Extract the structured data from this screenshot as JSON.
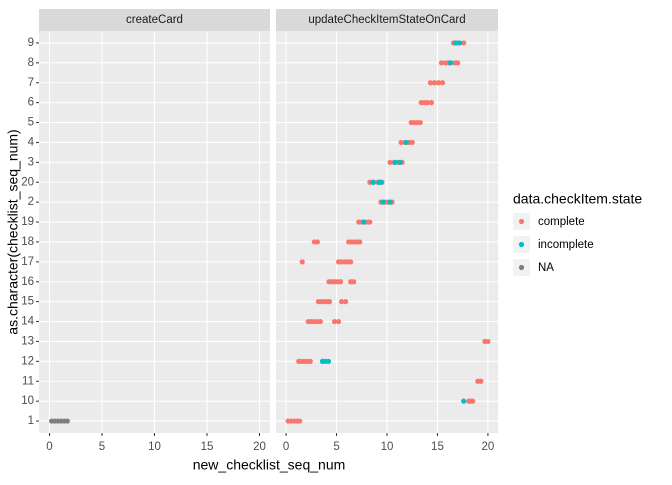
{
  "chart_data": {
    "type": "scatter",
    "panels": [
      "createCard",
      "updateCheckItemStateOnCard"
    ],
    "x_label": "new_checklist_seq_num",
    "y_label": "as.character(checklist_seq_num)",
    "legend_title": "data.checkItem.state",
    "xlim": [
      -1,
      21
    ],
    "xticks": [
      0,
      5,
      10,
      15,
      20
    ],
    "y_categories": [
      "1",
      "10",
      "11",
      "12",
      "13",
      "14",
      "15",
      "16",
      "17",
      "18",
      "19",
      "2",
      "20",
      "3",
      "4",
      "5",
      "6",
      "7",
      "8",
      "9"
    ],
    "grid": true,
    "series": [
      {
        "name": "complete",
        "color": "#F8766D",
        "panel": 1,
        "x": [
          0.2,
          0.5,
          0.8,
          1.1,
          1.35,
          18.1,
          18.3,
          18.5,
          19,
          19.3,
          1.25,
          1.5,
          1.8,
          2.1,
          2.4,
          19.7,
          20,
          2.2,
          2.5,
          2.8,
          3.1,
          3.4,
          4.8,
          5.2,
          3.2,
          3.5,
          3.8,
          4.1,
          4.3,
          5.5,
          5.9,
          4.25,
          4.5,
          4.8,
          5.1,
          5.4,
          6.4,
          6.7,
          5.2,
          5.5,
          5.8,
          6.1,
          6.4,
          1.6,
          6.2,
          6.5,
          6.8,
          7.1,
          7.3,
          2.8,
          3.1,
          7.2,
          7.5,
          7.8,
          8.1,
          8.3,
          9.4,
          9.8,
          10.1,
          10.5,
          8.3,
          8.7,
          9.1,
          9.5,
          10.3,
          10.7,
          11.1,
          11.5,
          11.4,
          11.8,
          12.2,
          12.5,
          12.4,
          12.7,
          13,
          13.3,
          13.4,
          13.7,
          14,
          14.4,
          14.3,
          14.7,
          15.1,
          15.5,
          15.4,
          15.8,
          16.1,
          16.7,
          17,
          16.6,
          17,
          17.6
        ],
        "y": [
          "1",
          "1",
          "1",
          "1",
          "1",
          "10",
          "10",
          "10",
          "11",
          "11",
          "12",
          "12",
          "12",
          "12",
          "12",
          "13",
          "13",
          "14",
          "14",
          "14",
          "14",
          "14",
          "14",
          "14",
          "15",
          "15",
          "15",
          "15",
          "15",
          "15",
          "15",
          "16",
          "16",
          "16",
          "16",
          "16",
          "16",
          "16",
          "17",
          "17",
          "17",
          "17",
          "17",
          "17",
          "18",
          "18",
          "18",
          "18",
          "18",
          "18",
          "18",
          "19",
          "19",
          "19",
          "19",
          "19",
          "2",
          "2",
          "2",
          "2",
          "20",
          "20",
          "20",
          "20",
          "3",
          "3",
          "3",
          "3",
          "4",
          "4",
          "4",
          "4",
          "5",
          "5",
          "5",
          "5",
          "6",
          "6",
          "6",
          "6",
          "7",
          "7",
          "7",
          "7",
          "8",
          "8",
          "8",
          "8",
          "8",
          "9",
          "9",
          "9"
        ]
      },
      {
        "name": "incomplete",
        "color": "#00BFC4",
        "panel": 1,
        "x": [
          17.6,
          3.6,
          3.9,
          4.2,
          7.7,
          9.6,
          10.3,
          8.6,
          9.2,
          9.4,
          10.8,
          11.3,
          11.9,
          16.3,
          16.8,
          17.2
        ],
        "y": [
          "10",
          "12",
          "12",
          "12",
          "19",
          "2",
          "2",
          "20",
          "20",
          "20",
          "3",
          "3",
          "4",
          "8",
          "9",
          "9"
        ]
      },
      {
        "name": "NA",
        "color": "#7F7F7F",
        "panel": 0,
        "x": [
          0.2,
          0.5,
          0.8,
          1.1,
          1.4,
          1.7
        ],
        "y": [
          "1",
          "1",
          "1",
          "1",
          "1",
          "1"
        ]
      }
    ]
  }
}
